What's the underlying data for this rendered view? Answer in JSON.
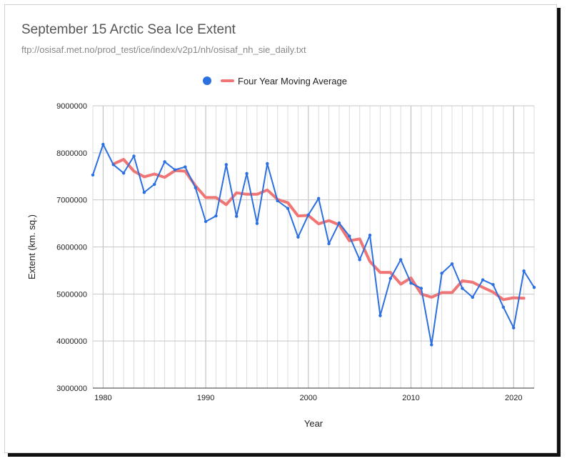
{
  "chart_data": {
    "type": "line",
    "title": "September 15 Arctic Sea Ice Extent",
    "subtitle": "ftp://osisaf.met.no/prod_test/ice/index/v2p1/nh/osisaf_nh_sie_daily.txt",
    "xlabel": "Year",
    "ylabel": "Extent (km. sq.)",
    "xlim": [
      1979,
      2022
    ],
    "ylim": [
      3000000,
      9000000
    ],
    "x_ticks": [
      "1980",
      "1990",
      "2000",
      "2010",
      "2020"
    ],
    "y_ticks": [
      "3000000",
      "4000000",
      "5000000",
      "6000000",
      "7000000",
      "8000000",
      "9000000"
    ],
    "legend_position": "top",
    "grid": true,
    "series": [
      {
        "name": "",
        "color": "#2b6fe0",
        "marker": "circle",
        "legend_marker": "circle",
        "x": [
          1979,
          1980,
          1981,
          1982,
          1983,
          1984,
          1985,
          1986,
          1987,
          1988,
          1989,
          1990,
          1991,
          1992,
          1993,
          1994,
          1995,
          1996,
          1997,
          1998,
          1999,
          2000,
          2001,
          2002,
          2003,
          2004,
          2005,
          2006,
          2007,
          2008,
          2009,
          2010,
          2011,
          2012,
          2013,
          2014,
          2015,
          2016,
          2017,
          2018,
          2019,
          2020,
          2021,
          2022
        ],
        "values": [
          7530000,
          8180000,
          7750000,
          7570000,
          7930000,
          7160000,
          7330000,
          7810000,
          7640000,
          7700000,
          7260000,
          6540000,
          6660000,
          7750000,
          6650000,
          7560000,
          6500000,
          7770000,
          6980000,
          6820000,
          6210000,
          6680000,
          7030000,
          6070000,
          6510000,
          6230000,
          5730000,
          6250000,
          4540000,
          5330000,
          5730000,
          5230000,
          5120000,
          3920000,
          5440000,
          5640000,
          5120000,
          4930000,
          5300000,
          5200000,
          4720000,
          4280000,
          5490000,
          5140000
        ]
      },
      {
        "name": "Four Year Moving Average",
        "color": "#f07575",
        "legend_marker": "line",
        "x": [
          1981,
          1982,
          1983,
          1984,
          1985,
          1986,
          1987,
          1988,
          1989,
          1990,
          1991,
          1992,
          1993,
          1994,
          1995,
          1996,
          1997,
          1998,
          1999,
          2000,
          2001,
          2002,
          2003,
          2004,
          2005,
          2006,
          2007,
          2008,
          2009,
          2010,
          2011,
          2012,
          2013,
          2014,
          2015,
          2016,
          2017,
          2018,
          2019,
          2020,
          2021
        ],
        "values": [
          7760000,
          7860000,
          7610000,
          7490000,
          7550000,
          7480000,
          7620000,
          7610000,
          7300000,
          7050000,
          7050000,
          6900000,
          7150000,
          7120000,
          7120000,
          7210000,
          7010000,
          6940000,
          6660000,
          6670000,
          6490000,
          6560000,
          6470000,
          6130000,
          6170000,
          5690000,
          5460000,
          5460000,
          5210000,
          5340000,
          5000000,
          4930000,
          5030000,
          5030000,
          5280000,
          5250000,
          5140000,
          5040000,
          4880000,
          4920000,
          4910000
        ]
      }
    ]
  }
}
